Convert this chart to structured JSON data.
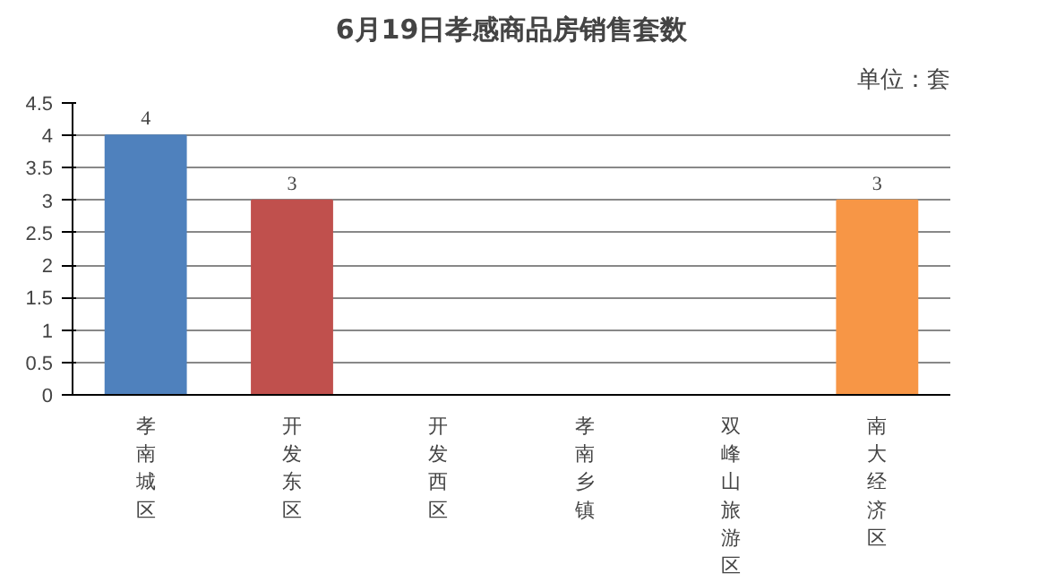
{
  "chart_data": {
    "type": "bar",
    "title": "6月19日孝感商品房销售套数",
    "annotations": [
      "单位：套"
    ],
    "categories": [
      "孝南城区",
      "开发东区",
      "开发西区",
      "孝南乡镇",
      "双峰山旅游区",
      "南大经济区"
    ],
    "values": [
      4,
      3,
      0,
      0,
      0,
      3
    ],
    "colors": [
      "#4f81bd",
      "#c0504d",
      "#9bbb59",
      "#8064a2",
      "#4bacc6",
      "#f79646"
    ],
    "value_labels": [
      "4",
      "3",
      null,
      null,
      null,
      "3"
    ],
    "ylim": [
      0,
      4.5
    ],
    "yticks": [
      0,
      0.5,
      1,
      1.5,
      2,
      2.5,
      3,
      3.5,
      4,
      4.5
    ],
    "grid": "y"
  }
}
